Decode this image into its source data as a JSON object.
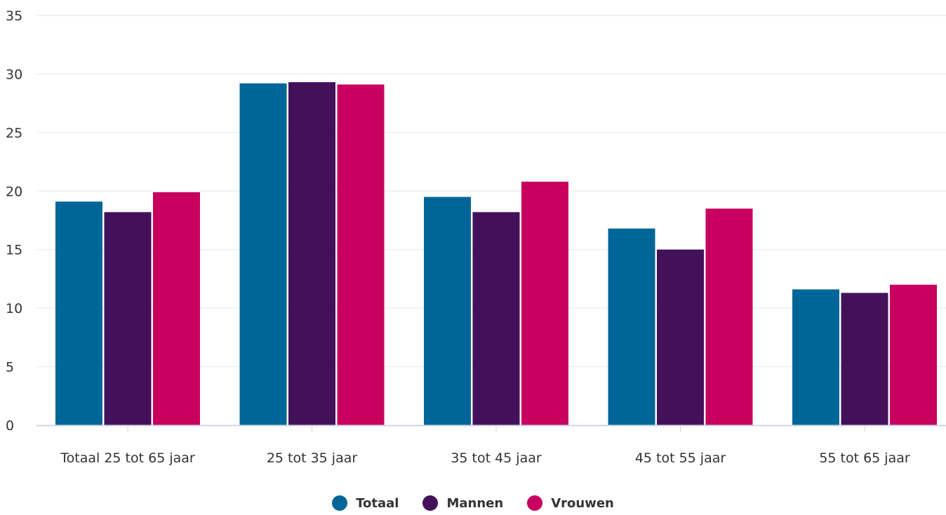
{
  "chart_data": {
    "type": "bar",
    "title": "",
    "xlabel": "",
    "ylabel": "",
    "ylim": [
      0,
      35
    ],
    "yticks": [
      0,
      5,
      10,
      15,
      20,
      25,
      30,
      35
    ],
    "grid": true,
    "legend_position": "bottom-center",
    "categories": [
      "Totaal 25 tot 65 jaar",
      "25 tot 35 jaar",
      "35 tot 45 jaar",
      "45 tot 55 jaar",
      "55 tot 65 jaar"
    ],
    "series": [
      {
        "name": "Totaal",
        "color": "#006699",
        "values": [
          19.1,
          29.2,
          19.5,
          16.8,
          11.6
        ]
      },
      {
        "name": "Mannen",
        "color": "#43115a",
        "values": [
          18.2,
          29.3,
          18.2,
          15.0,
          11.3
        ]
      },
      {
        "name": "Vrouwen",
        "color": "#c8005f",
        "values": [
          19.9,
          29.1,
          20.8,
          18.5,
          12.0
        ]
      }
    ]
  }
}
